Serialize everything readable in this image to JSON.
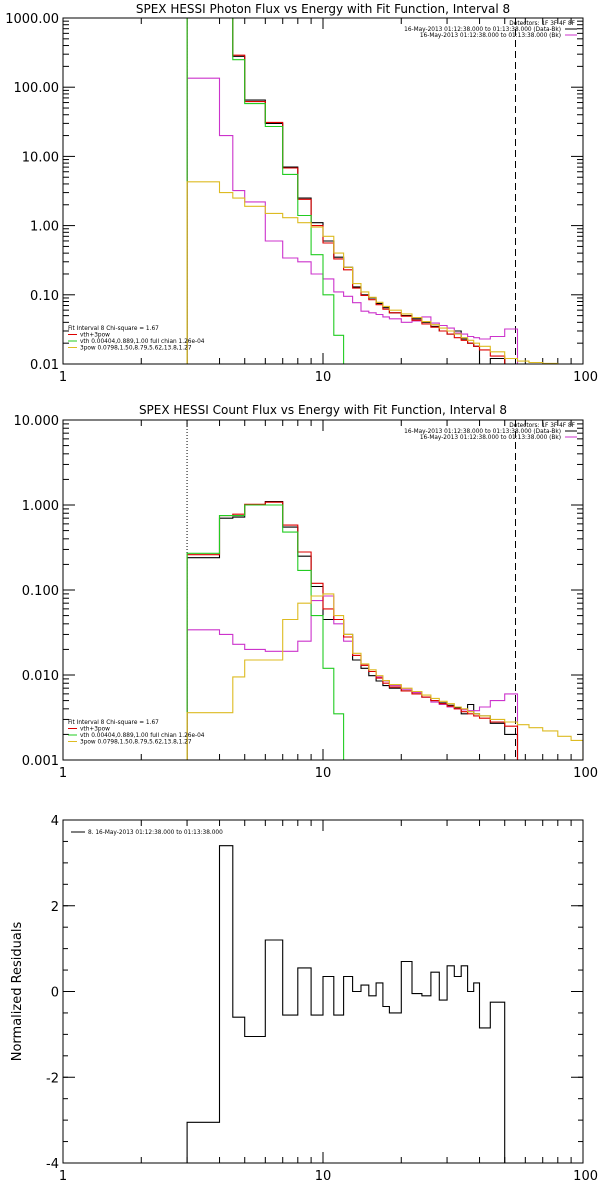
{
  "chart_data": [
    {
      "type": "line",
      "title": "SPEX HESSI Photon Flux vs Energy with Fit Function, Interval 8",
      "xscale": "log",
      "yscale": "log",
      "xlim": [
        1,
        100
      ],
      "ylim": [
        0.01,
        1000
      ],
      "xticks": [
        1,
        10,
        100
      ],
      "xtick_labels": [
        "1",
        "10",
        "100"
      ],
      "yticks": [
        0.01,
        0.1,
        1,
        10,
        100,
        1000
      ],
      "ytick_labels": [
        "0.01",
        "0.10",
        "1.00",
        "10.00",
        "100.00",
        "1000.00"
      ],
      "legend_right": [
        {
          "text": "Detectors: 1F 3F 4F 8F",
          "color": ""
        },
        {
          "text": "16-May-2013 01:12:38.000 to 01:13:38.000 (Data-Bk)",
          "color": "#000000"
        },
        {
          "text": "16-May-2013 01:12:38.000 to 01:13:38.000 (Bk)",
          "color": "#cc33cc"
        }
      ],
      "legend_left": [
        {
          "text": "Fit Interval 8   Chi-square = 1.67",
          "color": ""
        },
        {
          "text": "vth+3pow",
          "color": "#dd0000"
        },
        {
          "text": "vth 0.00404,0.889,1.00  full chian 1.26e-04",
          "color": "#22cc22"
        },
        {
          "text": "3pow 0.0798,1.50,8.79,5.62,13.8,1.27",
          "color": "#ddbb22"
        }
      ],
      "markers": [
        {
          "x": 3.0,
          "style": "dotted"
        },
        {
          "x": 55,
          "style": "dashed"
        }
      ],
      "series": [
        {
          "name": "Data-Bk",
          "color": "#000000",
          "edges": [
            3,
            4,
            4.5,
            5,
            6,
            7,
            8,
            9,
            10,
            11,
            12,
            13,
            14,
            15,
            16,
            17,
            18,
            20,
            22,
            24,
            26,
            28,
            30,
            32,
            34,
            36,
            38,
            40,
            44,
            50,
            56
          ],
          "values": [
            1000,
            1000,
            280,
            65,
            30,
            7,
            2.5,
            1.1,
            0.6,
            0.35,
            0.25,
            0.13,
            0.1,
            0.09,
            0.075,
            0.065,
            0.055,
            0.05,
            0.045,
            0.04,
            0.035,
            0.03,
            0.027,
            0.03,
            0.023,
            0.02,
            0.018,
            0.01,
            0.012,
            0.006
          ]
        },
        {
          "name": "Bk",
          "color": "#cc33cc",
          "edges": [
            3,
            4,
            4.5,
            5,
            6,
            7,
            8,
            9,
            10,
            11,
            12,
            13,
            14,
            15,
            16,
            17,
            18,
            20,
            22,
            24,
            26,
            28,
            30,
            32,
            34,
            36,
            38,
            40,
            44,
            50,
            56
          ],
          "values": [
            135,
            20,
            3.2,
            2.2,
            0.6,
            0.34,
            0.3,
            0.2,
            0.17,
            0.11,
            0.095,
            0.077,
            0.058,
            0.055,
            0.052,
            0.048,
            0.045,
            0.04,
            0.042,
            0.048,
            0.039,
            0.036,
            0.033,
            0.028,
            0.027,
            0.025,
            0.024,
            0.023,
            0.025,
            0.032
          ]
        },
        {
          "name": "vth+3pow",
          "color": "#dd0000",
          "edges": [
            3,
            4,
            4.5,
            5,
            6,
            7,
            8,
            9,
            10,
            11,
            12,
            13,
            14,
            15,
            16,
            17,
            18,
            20,
            22,
            24,
            26,
            28,
            30,
            32,
            34,
            36,
            38,
            40,
            44,
            50,
            56
          ],
          "values": [
            1000,
            1000,
            290,
            62,
            31,
            6.8,
            2.4,
            1.0,
            0.56,
            0.33,
            0.23,
            0.125,
            0.098,
            0.085,
            0.072,
            0.062,
            0.055,
            0.049,
            0.043,
            0.038,
            0.034,
            0.03,
            0.027,
            0.024,
            0.022,
            0.02,
            0.018,
            0.016,
            0.013,
            0.01
          ]
        },
        {
          "name": "vth",
          "color": "#22cc22",
          "edges": [
            3,
            4,
            4.5,
            5,
            6,
            7,
            8,
            9,
            10,
            11,
            12
          ],
          "values": [
            1000,
            1000,
            250,
            58,
            27,
            5.5,
            1.4,
            0.38,
            0.1,
            0.026
          ]
        },
        {
          "name": "3pow",
          "color": "#ddbb22",
          "edges": [
            3,
            4,
            4.5,
            5,
            6,
            7,
            8,
            9,
            10,
            11,
            12,
            13,
            14,
            15,
            16,
            17,
            18,
            20,
            22,
            24,
            26,
            28,
            30,
            32,
            34,
            36,
            38,
            40,
            44,
            50,
            56,
            62,
            70,
            80
          ],
          "values": [
            4.3,
            3.0,
            2.5,
            1.9,
            1.5,
            1.3,
            1.1,
            0.95,
            0.7,
            0.4,
            0.25,
            0.145,
            0.11,
            0.092,
            0.078,
            0.068,
            0.06,
            0.053,
            0.047,
            0.041,
            0.037,
            0.033,
            0.03,
            0.027,
            0.024,
            0.022,
            0.02,
            0.018,
            0.015,
            0.012,
            0.011,
            0.0105,
            0.0102
          ]
        }
      ]
    },
    {
      "type": "line",
      "title": "SPEX HESSI Count Flux vs Energy with Fit Function, Interval 8",
      "xscale": "log",
      "yscale": "log",
      "xlim": [
        1,
        100
      ],
      "ylim": [
        0.001,
        10
      ],
      "xticks": [
        1,
        10,
        100
      ],
      "xtick_labels": [
        "1",
        "10",
        "100"
      ],
      "yticks": [
        0.001,
        0.01,
        0.1,
        1,
        10
      ],
      "ytick_labels": [
        "0.001",
        "0.010",
        "0.100",
        "1.000",
        "10.000"
      ],
      "legend_right": [
        {
          "text": "Detectors: 1F 3F 4F 8F",
          "color": ""
        },
        {
          "text": "16-May-2013 01:12:38.000 to 01:13:38.000 (Data-Bk)",
          "color": "#000000"
        },
        {
          "text": "16-May-2013 01:12:38.000 to 01:13:38.000 (Bk)",
          "color": "#cc33cc"
        }
      ],
      "legend_left": [
        {
          "text": "Fit Interval 8   Chi-square = 1.67",
          "color": ""
        },
        {
          "text": "vth+3pow",
          "color": "#dd0000"
        },
        {
          "text": "vth 0.00404,0.889,1.00  full chian 1.26e-04",
          "color": "#22cc22"
        },
        {
          "text": "3pow 0.0798,1.50,8.79,5.62,13.8,1.27",
          "color": "#ddbb22"
        }
      ],
      "markers": [
        {
          "x": 3.0,
          "style": "dotted"
        },
        {
          "x": 55,
          "style": "dashed"
        }
      ],
      "series": [
        {
          "name": "Data-Bk",
          "color": "#000000",
          "edges": [
            3,
            4,
            4.5,
            5,
            6,
            7,
            8,
            9,
            10,
            11,
            12,
            13,
            14,
            15,
            16,
            17,
            18,
            20,
            22,
            24,
            26,
            28,
            30,
            32,
            34,
            36,
            38,
            40,
            44,
            50,
            56
          ],
          "values": [
            0.24,
            0.7,
            0.72,
            1.0,
            1.1,
            0.55,
            0.25,
            0.11,
            0.045,
            0.045,
            0.03,
            0.015,
            0.012,
            0.0098,
            0.0085,
            0.0075,
            0.007,
            0.0065,
            0.006,
            0.0055,
            0.005,
            0.0047,
            0.0044,
            0.0041,
            0.0035,
            0.0045,
            0.0035,
            0.0033,
            0.0027,
            0.002
          ]
        },
        {
          "name": "Bk",
          "color": "#cc33cc",
          "edges": [
            3,
            4,
            4.5,
            5,
            6,
            7,
            8,
            9,
            10,
            11,
            12,
            13,
            14,
            15,
            16,
            17,
            18,
            20,
            22,
            24,
            26,
            28,
            30,
            32,
            34,
            36,
            38,
            40,
            44,
            50,
            56
          ],
          "values": [
            0.034,
            0.03,
            0.023,
            0.02,
            0.019,
            0.019,
            0.025,
            0.075,
            0.085,
            0.04,
            0.025,
            0.017,
            0.013,
            0.011,
            0.0095,
            0.0085,
            0.0075,
            0.0068,
            0.0062,
            0.0055,
            0.0048,
            0.0045,
            0.0042,
            0.004,
            0.0039,
            0.0038,
            0.0038,
            0.0042,
            0.005,
            0.006
          ]
        },
        {
          "name": "vth+3pow",
          "color": "#dd0000",
          "edges": [
            3,
            4,
            4.5,
            5,
            6,
            7,
            8,
            9,
            10,
            11,
            12,
            13,
            14,
            15,
            16,
            17,
            18,
            20,
            22,
            24,
            26,
            28,
            30,
            32,
            34,
            36,
            38,
            40,
            44,
            50,
            56
          ],
          "values": [
            0.26,
            0.75,
            0.78,
            1.02,
            1.08,
            0.58,
            0.28,
            0.12,
            0.06,
            0.045,
            0.028,
            0.017,
            0.013,
            0.011,
            0.0092,
            0.008,
            0.0072,
            0.0065,
            0.006,
            0.0055,
            0.005,
            0.0046,
            0.0043,
            0.004,
            0.0037,
            0.0035,
            0.0033,
            0.0031,
            0.0028,
            0.0025
          ]
        },
        {
          "name": "vth",
          "color": "#22cc22",
          "edges": [
            3,
            4,
            4.5,
            5,
            6,
            7,
            8,
            9,
            10,
            11,
            12
          ],
          "values": [
            0.27,
            0.75,
            0.75,
            1.0,
            1.0,
            0.48,
            0.17,
            0.05,
            0.012,
            0.0035
          ]
        },
        {
          "name": "3pow",
          "color": "#ddbb22",
          "edges": [
            3,
            4,
            4.5,
            5,
            6,
            7,
            8,
            9,
            10,
            11,
            12,
            13,
            14,
            15,
            16,
            17,
            18,
            20,
            22,
            24,
            26,
            28,
            30,
            32,
            34,
            36,
            38,
            40,
            44,
            50,
            56,
            62,
            70,
            80,
            90,
            100
          ],
          "values": [
            0.0036,
            0.0036,
            0.0095,
            0.015,
            0.015,
            0.045,
            0.07,
            0.085,
            0.09,
            0.05,
            0.03,
            0.018,
            0.0135,
            0.0115,
            0.0098,
            0.0086,
            0.0077,
            0.007,
            0.0064,
            0.0058,
            0.0053,
            0.0049,
            0.0046,
            0.0042,
            0.004,
            0.0037,
            0.0035,
            0.0033,
            0.003,
            0.0028,
            0.0026,
            0.0024,
            0.0022,
            0.0019,
            0.0017
          ]
        }
      ]
    },
    {
      "type": "line",
      "title": "",
      "ylabel": "Normalized Residuals",
      "xscale": "log",
      "yscale": "linear",
      "xlim": [
        1,
        100
      ],
      "ylim": [
        -4,
        4
      ],
      "xticks": [
        1,
        10,
        100
      ],
      "xtick_labels": [
        "1",
        "10",
        "100"
      ],
      "yticks": [
        -4,
        -2,
        0,
        2,
        4
      ],
      "ytick_labels": [
        "-4",
        "-2",
        "0",
        "2",
        "4"
      ],
      "legend": [
        {
          "text": "8. 16-May-2013 01:12:38.000 to 01:13:38.000",
          "color": "#000000"
        }
      ],
      "series": [
        {
          "name": "8. 16-May-2013 01:12:38.000 to 01:13:38.000",
          "color": "#000000",
          "edges": [
            3,
            4,
            4.5,
            5,
            6,
            7,
            8,
            9,
            10,
            11,
            12,
            13,
            14,
            15,
            16,
            17,
            18,
            20,
            22,
            24,
            26,
            28,
            30,
            32,
            34,
            36,
            38,
            40,
            44,
            50,
            56
          ],
          "values": [
            -3.05,
            3.4,
            -0.6,
            -1.05,
            1.2,
            -0.55,
            0.55,
            -0.55,
            0.35,
            -0.55,
            0.35,
            0.0,
            0.15,
            -0.1,
            0.2,
            -0.35,
            -0.5,
            0.7,
            -0.05,
            -0.1,
            0.45,
            -0.2,
            0.6,
            0.35,
            0.6,
            0.0,
            0.2,
            -0.85,
            -0.25,
            -4.0
          ]
        }
      ]
    }
  ]
}
